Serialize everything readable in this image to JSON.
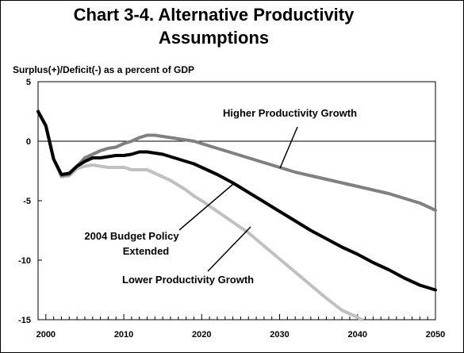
{
  "chart_data": {
    "type": "line",
    "title": "Chart 3-4.  Alternative Productivity Assumptions",
    "title_lines": [
      "Chart 3-4.  Alternative Productivity",
      "Assumptions"
    ],
    "ylabel": "Surplus(+)/Deficit(-) as a percent of GDP",
    "xlabel": "",
    "xlim": [
      1999,
      2050
    ],
    "ylim": [
      -15,
      5
    ],
    "x_ticks": [
      2000,
      2010,
      2020,
      2030,
      2040,
      2050
    ],
    "y_ticks": [
      5,
      0,
      -5,
      -10,
      -15
    ],
    "grid": false,
    "legend": "none",
    "annotations": [
      "Higher Productivity Growth",
      "2004 Budget Policy",
      "Extended",
      "Lower Productivity Growth"
    ],
    "series": [
      {
        "name": "Higher Productivity Growth",
        "color": "#808080",
        "x": [
          1999,
          2000,
          2001,
          2002,
          2003,
          2004,
          2005,
          2006,
          2007,
          2008,
          2009,
          2010,
          2011,
          2012,
          2013,
          2014,
          2015,
          2016,
          2017,
          2018,
          2019,
          2020,
          2022,
          2024,
          2026,
          2028,
          2030,
          2032,
          2034,
          2036,
          2038,
          2040,
          2042,
          2044,
          2046,
          2048,
          2050
        ],
        "values": [
          2.5,
          1.3,
          -1.5,
          -2.9,
          -2.8,
          -2.1,
          -1.4,
          -1.1,
          -0.8,
          -0.6,
          -0.5,
          -0.2,
          0.0,
          0.3,
          0.5,
          0.5,
          0.4,
          0.3,
          0.2,
          0.1,
          0.0,
          -0.2,
          -0.6,
          -1.0,
          -1.4,
          -1.8,
          -2.2,
          -2.6,
          -2.9,
          -3.2,
          -3.5,
          -3.8,
          -4.1,
          -4.4,
          -4.8,
          -5.2,
          -5.8
        ]
      },
      {
        "name": "2004 Budget Policy Extended",
        "color": "#000000",
        "x": [
          1999,
          2000,
          2001,
          2002,
          2003,
          2004,
          2005,
          2006,
          2007,
          2008,
          2009,
          2010,
          2011,
          2012,
          2013,
          2014,
          2015,
          2016,
          2017,
          2018,
          2019,
          2020,
          2022,
          2024,
          2026,
          2028,
          2030,
          2032,
          2034,
          2036,
          2038,
          2040,
          2042,
          2044,
          2046,
          2048,
          2050
        ],
        "values": [
          2.5,
          1.3,
          -1.5,
          -2.8,
          -2.7,
          -2.1,
          -1.7,
          -1.4,
          -1.4,
          -1.3,
          -1.2,
          -1.2,
          -1.1,
          -0.9,
          -0.9,
          -1.0,
          -1.1,
          -1.3,
          -1.5,
          -1.7,
          -1.9,
          -2.2,
          -2.8,
          -3.5,
          -4.3,
          -5.1,
          -5.9,
          -6.7,
          -7.5,
          -8.2,
          -8.9,
          -9.5,
          -10.2,
          -10.8,
          -11.5,
          -12.1,
          -12.5
        ]
      },
      {
        "name": "Lower Productivity Growth",
        "color": "#c0c0c0",
        "x": [
          1999,
          2000,
          2001,
          2002,
          2003,
          2004,
          2005,
          2006,
          2007,
          2008,
          2009,
          2010,
          2011,
          2012,
          2013,
          2014,
          2015,
          2016,
          2017,
          2018,
          2019,
          2020,
          2022,
          2024,
          2026,
          2028,
          2030,
          2032,
          2034,
          2036,
          2038,
          2040,
          2040.5
        ],
        "values": [
          2.5,
          1.3,
          -1.5,
          -3.0,
          -2.9,
          -2.3,
          -2.1,
          -2.0,
          -2.1,
          -2.2,
          -2.2,
          -2.2,
          -2.4,
          -2.4,
          -2.4,
          -2.7,
          -3.0,
          -3.3,
          -3.7,
          -4.1,
          -4.6,
          -5.0,
          -5.9,
          -6.8,
          -7.7,
          -8.8,
          -9.9,
          -11.0,
          -12.1,
          -13.2,
          -14.2,
          -14.8,
          -15.0
        ]
      }
    ]
  }
}
